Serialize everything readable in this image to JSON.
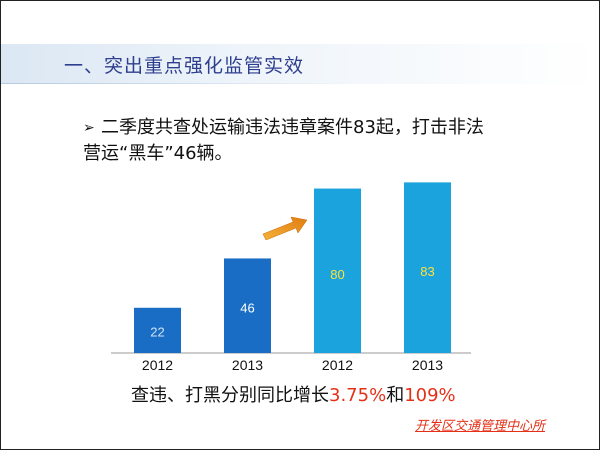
{
  "title": "一、突出重点强化监管实效",
  "bullet": {
    "marker": "➢",
    "line1": "二季度共查处运输违法违章案件83起，打击非法",
    "line2": "营运“黑车”46辆。"
  },
  "chart_data": {
    "type": "bar",
    "categories": [
      "2012",
      "2013",
      "2012",
      "2013"
    ],
    "values": [
      22,
      46,
      80,
      83
    ],
    "ylim": [
      0,
      90
    ],
    "colors": [
      "#1a6dc4",
      "#1a6dc4",
      "#1aa3dd",
      "#1aa3dd"
    ],
    "label_colors": [
      "#cde3f7",
      "#ffffff",
      "#ffe13a",
      "#ffe13a"
    ]
  },
  "summary": {
    "text": "查违、打黑分别同比增长",
    "pct1": "3.75%",
    "conj": "和",
    "pct2": "109%"
  },
  "footer": "开发区交通管理中心所"
}
